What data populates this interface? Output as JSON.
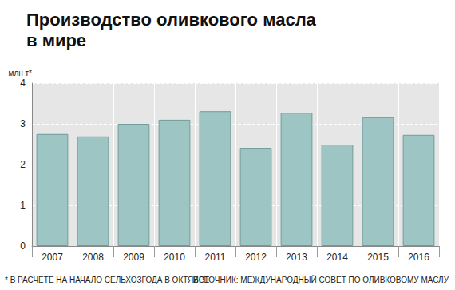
{
  "chart_data": {
    "type": "bar",
    "title": "Производство оливкового масла\nв мире",
    "y_label": "млн т*",
    "footnote": "* В РАСЧЕТЕ НА НАЧАЛО СЕЛЬХОЗГОДА В ОКТЯБРЕ",
    "source": "ИСТОЧНИК: МЕЖДУНАРОДНЫЙ СОВЕТ ПО ОЛИВКОВОМУ МАСЛУ",
    "categories": [
      "2007",
      "2008",
      "2009",
      "2010",
      "2011",
      "2012",
      "2013",
      "2014",
      "2015",
      "2016"
    ],
    "values": [
      2.75,
      2.69,
      3.0,
      3.1,
      3.31,
      2.41,
      3.27,
      2.49,
      3.16,
      2.73
    ],
    "color": "#9cc5c3",
    "ylim": [
      0,
      4
    ],
    "yticks": [
      0,
      1,
      2,
      3,
      4
    ],
    "grid": true
  }
}
